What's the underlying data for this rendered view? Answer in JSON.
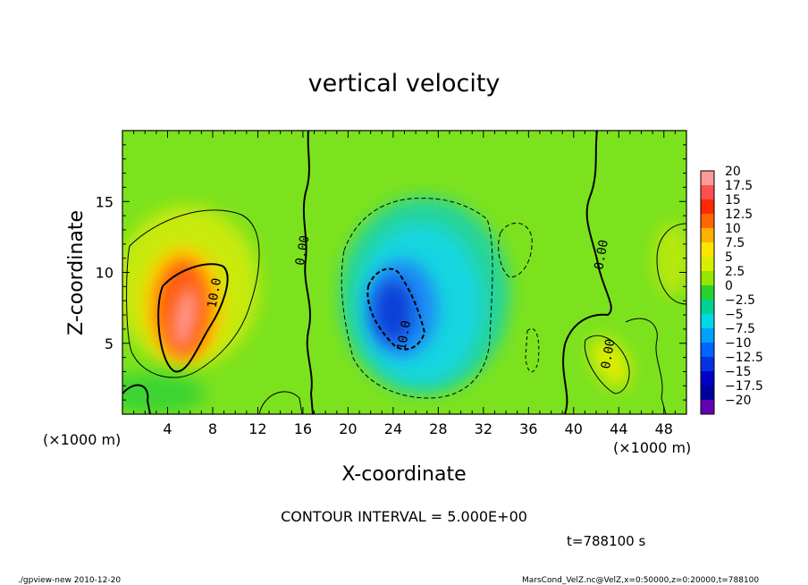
{
  "chart_data": {
    "type": "heatmap",
    "title": "vertical velocity",
    "xlabel": "X-coordinate",
    "ylabel": "Z-coordinate",
    "x_unit": "(×1000 m)",
    "y_unit": "(×1000 m)",
    "xlim": [
      0,
      50
    ],
    "ylim": [
      0,
      20
    ],
    "x_ticks": [
      4,
      8,
      12,
      16,
      20,
      24,
      28,
      32,
      36,
      40,
      44,
      48
    ],
    "y_ticks": [
      5,
      10,
      15
    ],
    "colorbar": {
      "levels": [
        "20",
        "17.5",
        "15",
        "12.5",
        "10",
        "7.5",
        "5",
        "2.5",
        "0",
        "−2.5",
        "−5",
        "−7.5",
        "−10",
        "−12.5",
        "−15",
        "−17.5",
        "−20"
      ],
      "colors": [
        "#ff9a9a",
        "#ff5050",
        "#ff2a00",
        "#ff6600",
        "#ffb000",
        "#ffe600",
        "#d8f000",
        "#96e600",
        "#28d232",
        "#00d296",
        "#00d8e6",
        "#00a0ff",
        "#0064ff",
        "#0032e6",
        "#0000c8",
        "#0000a0",
        "#6400b4"
      ]
    },
    "features": [
      {
        "type": "updraft",
        "x": 5.5,
        "z": 7,
        "max": 20
      },
      {
        "type": "downdraft",
        "x": 23,
        "z": 7,
        "min": -15
      },
      {
        "type": "updraft",
        "x": 44,
        "z": 4,
        "max": 7.5
      }
    ],
    "contour_labels": [
      {
        "text": "10.0",
        "x": 8.5,
        "z": 8.5
      },
      {
        "text": "0.00",
        "x": 16.3,
        "z": 11.5
      },
      {
        "text": "10.0",
        "x": 25.3,
        "z": 5.5
      },
      {
        "text": "0.00",
        "x": 42.8,
        "z": 11.2
      },
      {
        "text": "0.00",
        "x": 43.4,
        "z": 4.2
      }
    ],
    "contour_interval": "CONTOUR INTERVAL = 5.000E+00",
    "time": "t=788100 s"
  },
  "footer": {
    "left": "./gpview-new 2010-12-20",
    "right": "MarsCond_VelZ.nc@VelZ,x=0:50000,z=0:20000,t=788100"
  }
}
